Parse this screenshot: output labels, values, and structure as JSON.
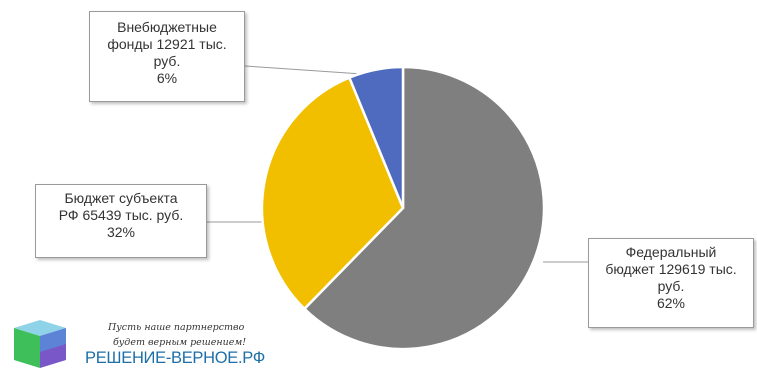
{
  "chart_data": {
    "type": "pie",
    "title": "",
    "slices": [
      {
        "label_lines": [
          "Федеральный",
          "бюджет 129619 тыс.",
          "руб.",
          "62%"
        ],
        "category": "Федеральный бюджет",
        "value": 129619,
        "unit": "тыс. руб.",
        "percent": "62%",
        "color": "#7f7f7f"
      },
      {
        "label_lines": [
          "Бюджет субъекта",
          "РФ 65439 тыс. руб.",
          "32%"
        ],
        "category": "Бюджет субъекта РФ",
        "value": 65439,
        "unit": "тыс. руб.",
        "percent": "32%",
        "color": "#f2bf00"
      },
      {
        "label_lines": [
          "Внебюджетные",
          "фонды 12921 тыс.",
          "руб.",
          "6%"
        ],
        "category": "Внебюджетные фонды",
        "value": 12921,
        "unit": "тыс. руб.",
        "percent": "6%",
        "color": "#4f6bbf"
      }
    ],
    "legend": "none",
    "data_labels": "callouts"
  },
  "watermark": {
    "tagline_1": "Пусть наше партнерство",
    "tagline_2": "будет верным решением!",
    "site": "РЕШЕНИЕ-ВЕРНОЕ.РФ",
    "logo": "cube-logo-icon"
  }
}
